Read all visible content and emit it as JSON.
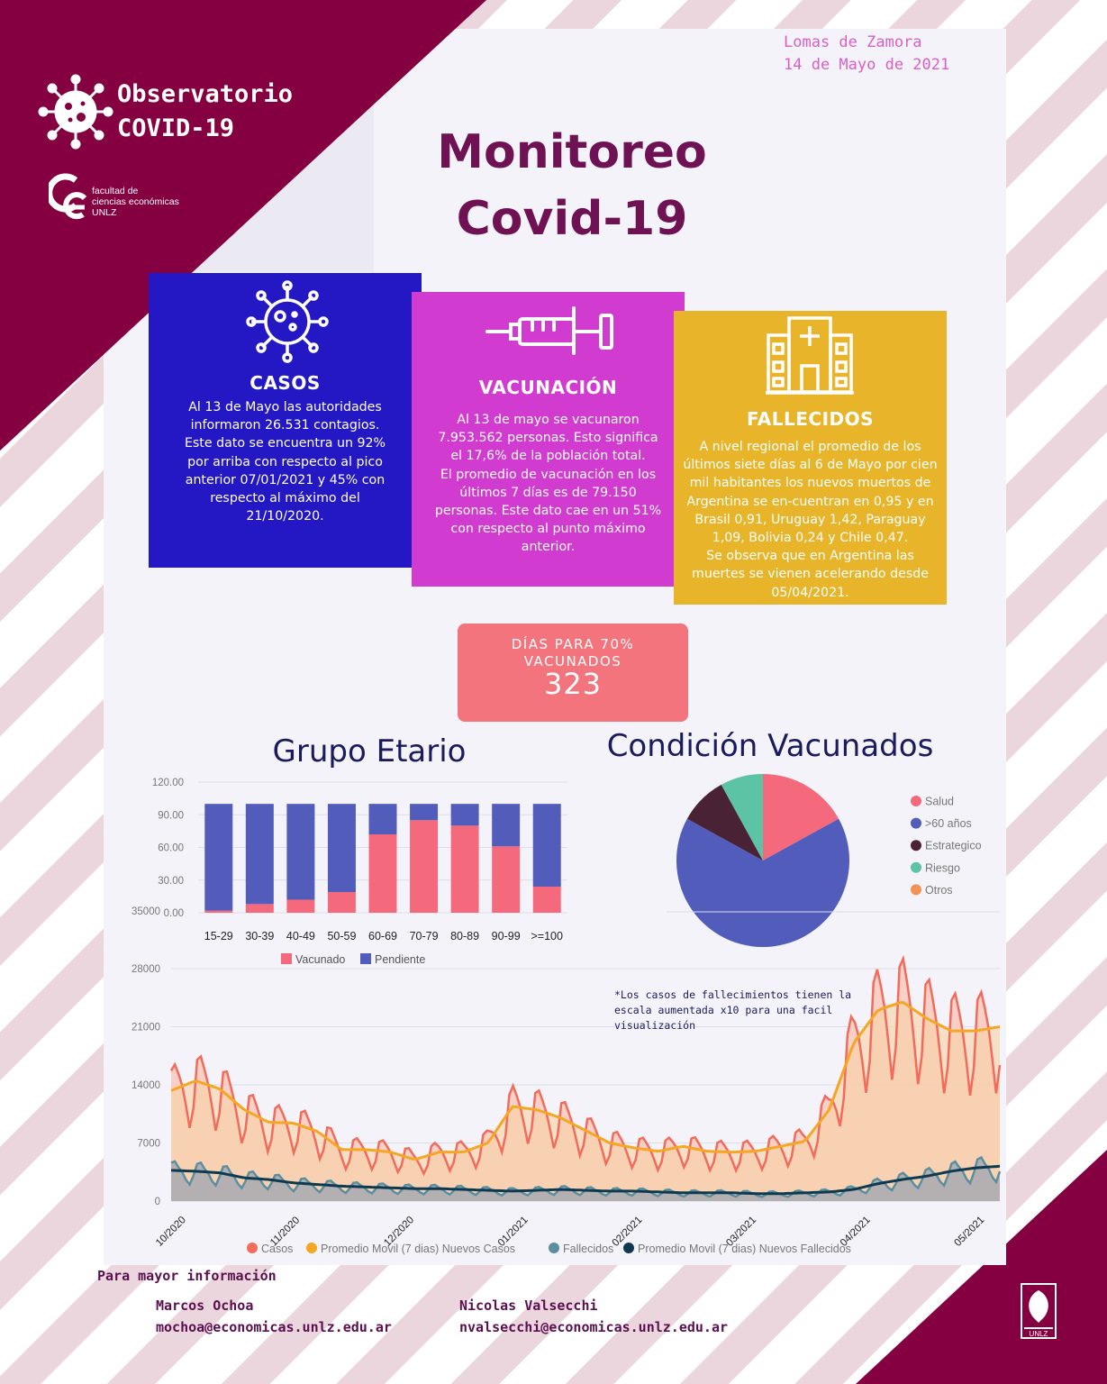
{
  "header": {
    "logo_line1": "Observatorio",
    "logo_line2": "COVID-19",
    "faculty_line1": "facultad de",
    "faculty_line2": "ciencias económicas",
    "faculty_line3": "UNLZ",
    "place": "Lomas de Zamora",
    "date": "14 de Mayo de 2021",
    "title_line1": "Monitoreo",
    "title_line2": "Covid-19"
  },
  "colors": {
    "brand": "#850040",
    "casos": "#2418c4",
    "vacunacion": "#d23bd0",
    "fallecidos": "#e8b42a",
    "days_box": "#f4747e"
  },
  "cards": {
    "casos": {
      "icon": "virus-icon",
      "title": "CASOS",
      "lines": [
        "Al 13 de Mayo las autoridades",
        "informaron 26.531 contagios.",
        "Este dato se encuentra un 92%",
        "por arriba con respecto al pico",
        "anterior 07/01/2021 y 45% con",
        "respecto al máximo del",
        "21/10/2020."
      ]
    },
    "vacunacion": {
      "icon": "syringe-icon",
      "title": "VACUNACIÓN",
      "lines": [
        "Al 13 de mayo se vacunaron",
        "7.953.562 personas. Esto significa",
        "el 17,6% de la población total.",
        "El promedio de vacunación en los",
        "últimos 7 días es de 79.150",
        "personas. Este dato cae en un 51%",
        "con respecto al punto máximo",
        "anterior."
      ]
    },
    "fallecidos": {
      "icon": "hospital-icon",
      "title": "FALLECIDOS",
      "lines": [
        "A nivel regional el promedio de los",
        "últimos siete días al 6 de Mayo por cien",
        "mil habitantes los nuevos muertos de",
        "Argentina se en-cuentran en 0,95 y en",
        "Brasil 0,91, Uruguay 1,42, Paraguay",
        "1,09, Bolivia 0,24 y Chile 0,47.",
        "Se observa que en Argentina las",
        "muertes se vienen acelerando desde",
        "05/04/2021."
      ]
    }
  },
  "days_box": {
    "label_line1": "DÍAS PARA 70%",
    "label_line2": "VACUNADOS",
    "value": "323"
  },
  "note": {
    "line1": "*Los casos de fallecimientos tienen la",
    "line2": "escala aumentada x10 para una facil",
    "line3": "visualización"
  },
  "footer": {
    "heading": "Para mayor información",
    "contacts": [
      {
        "name": "Marcos Ochoa",
        "email": "mochoa@economicas.unlz.edu.ar"
      },
      {
        "name": "Nicolas Valsecchi",
        "email": "nvalsecchi@economicas.unlz.edu.ar"
      }
    ]
  },
  "chart_data": [
    {
      "type": "bar",
      "stacked": true,
      "title": "Grupo Etario",
      "categories": [
        "15-29",
        "30-39",
        "40-49",
        "50-59",
        "60-69",
        "70-79",
        "80-89",
        "90-99",
        ">=100"
      ],
      "series": [
        {
          "name": "Vacunado",
          "color": "#f46a7c",
          "values": [
            2,
            8,
            12,
            19,
            72,
            85,
            80,
            61,
            24
          ]
        },
        {
          "name": "Pendiente",
          "color": "#525cba",
          "values": [
            98,
            92,
            88,
            81,
            28,
            15,
            20,
            39,
            76
          ]
        }
      ],
      "ylim": [
        0,
        120
      ],
      "yticks": [
        "0.00",
        "30.00",
        "60.00",
        "90.00",
        "120.00"
      ],
      "legend": "bottom",
      "grid": true
    },
    {
      "type": "pie",
      "title": "Condición Vacunados",
      "slices": [
        {
          "label": "Salud",
          "value": 17,
          "color": "#f46a7c"
        },
        {
          "label": ">60 años",
          "value": 66,
          "color": "#525cba"
        },
        {
          "label": "Estrategico",
          "value": 9,
          "color": "#4a2236"
        },
        {
          "label": "Riesgo",
          "value": 8,
          "color": "#5cc4a4"
        },
        {
          "label": "Otros",
          "value": 0,
          "color": "#f39257"
        }
      ],
      "legend": "right"
    },
    {
      "type": "line",
      "xlabels": [
        "10/2020",
        "11/2020",
        "12/2020",
        "01/2021",
        "02/2021",
        "03/2021",
        "04/2021",
        "05/2021"
      ],
      "ylim": [
        0,
        28000
      ],
      "yticks": [
        "0",
        "7000",
        "14000",
        "21000",
        "28000"
      ],
      "extra_tick": "35000",
      "legend": "bottom",
      "grid": true,
      "series": [
        {
          "name": "Casos",
          "color": "#f26b5b",
          "area": true
        },
        {
          "name": "Promedio Movil (7 dias) Nuevos Casos",
          "color": "#f5a623",
          "area": true
        },
        {
          "name": "Fallecidos",
          "color": "#5b8fa0",
          "area": true
        },
        {
          "name": "Promedio Movil (7 dias) Nuevos Fallecidos",
          "color": "#0e3a4f",
          "area": false
        }
      ],
      "weekly_avg_cases": [
        13300,
        14500,
        13500,
        11000,
        9500,
        9400,
        8400,
        6200,
        6200,
        5900,
        5000,
        5900,
        5900,
        7000,
        11400,
        11000,
        10000,
        8500,
        7000,
        6400,
        6000,
        6600,
        6000,
        5900,
        6000,
        6600,
        7200,
        11000,
        19000,
        23000,
        24000,
        22000,
        20500,
        20500,
        21000
      ],
      "weekly_avg_deaths": [
        3700,
        3600,
        3400,
        2800,
        2600,
        2200,
        2000,
        1800,
        1700,
        1600,
        1500,
        1500,
        1400,
        1300,
        1200,
        1300,
        1400,
        1300,
        1200,
        1200,
        1100,
        1000,
        1000,
        1000,
        900,
        900,
        1000,
        1100,
        1400,
        2100,
        2600,
        3000,
        3600,
        4000,
        4200
      ]
    }
  ]
}
